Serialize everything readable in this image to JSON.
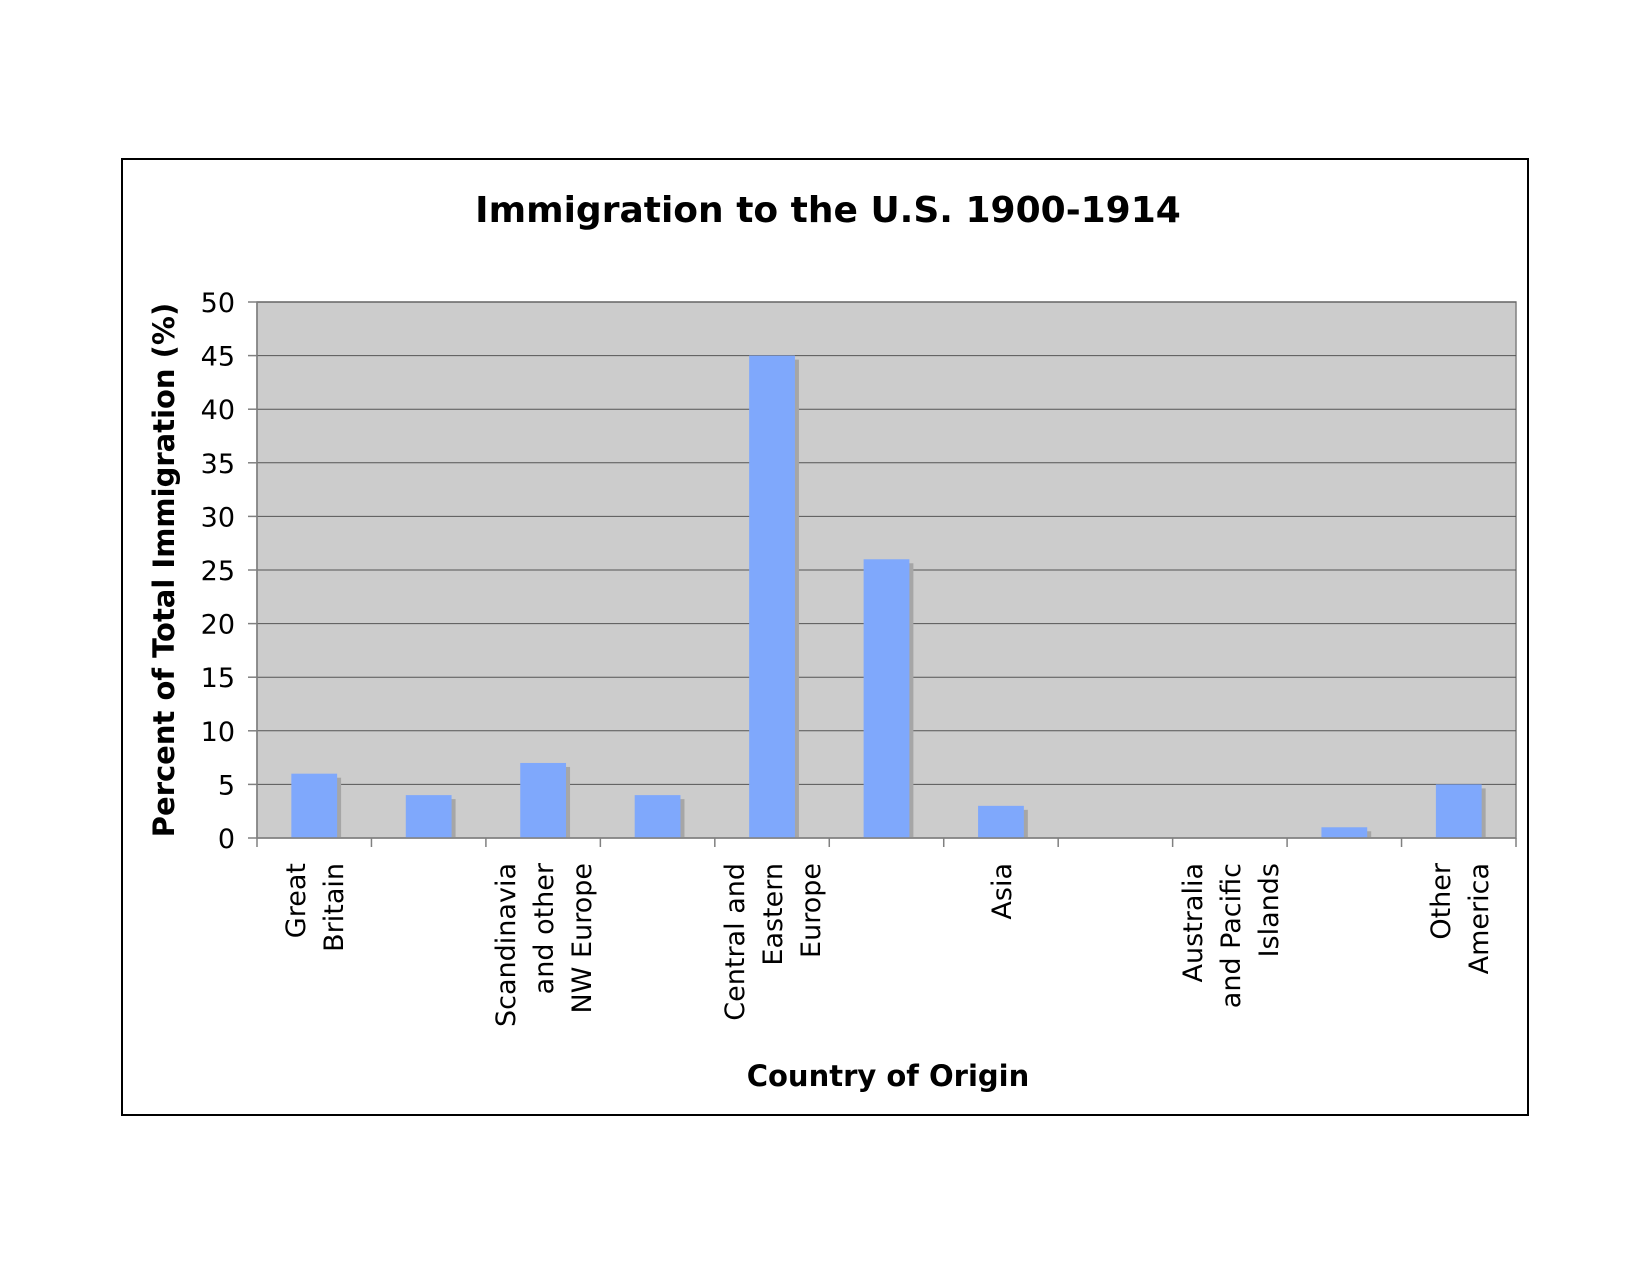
{
  "chart_data": {
    "type": "bar",
    "title": "Immigration to the U.S. 1900-1914",
    "xlabel": "Country of Origin",
    "ylabel": "Percent of Total Immigration (%)",
    "ylim": [
      0,
      50
    ],
    "yticks": [
      0,
      5,
      10,
      15,
      20,
      25,
      30,
      35,
      40,
      45,
      50
    ],
    "grid": true,
    "legend": "none",
    "categories": [
      [
        "Great",
        "Britain"
      ],
      [],
      [
        "Scandinavia",
        "and other",
        "NW Europe"
      ],
      [],
      [
        "Central and",
        "Eastern",
        "Europe"
      ],
      [],
      [
        "Asia"
      ],
      [],
      [
        "Australia",
        "and Pacific",
        "Islands"
      ],
      [],
      [
        "Other",
        "America"
      ]
    ],
    "values": [
      6,
      4,
      7,
      4,
      45,
      26,
      3,
      0,
      0,
      1,
      5
    ],
    "colors": {
      "bar": "#7fa8fc",
      "bar_shadow": "#a6a6a6",
      "plot_bg": "#cccccc",
      "grid": "#555555"
    }
  }
}
